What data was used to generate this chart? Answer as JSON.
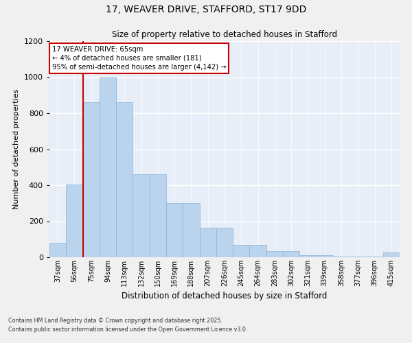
{
  "title": "17, WEAVER DRIVE, STAFFORD, ST17 9DD",
  "subtitle": "Size of property relative to detached houses in Stafford",
  "xlabel": "Distribution of detached houses by size in Stafford",
  "ylabel": "Number of detached properties",
  "categories": [
    "37sqm",
    "56sqm",
    "75sqm",
    "94sqm",
    "113sqm",
    "132sqm",
    "150sqm",
    "169sqm",
    "188sqm",
    "207sqm",
    "226sqm",
    "245sqm",
    "264sqm",
    "283sqm",
    "302sqm",
    "321sqm",
    "339sqm",
    "358sqm",
    "377sqm",
    "396sqm",
    "415sqm"
  ],
  "bar_heights": [
    80,
    405,
    860,
    1000,
    860,
    460,
    460,
    300,
    300,
    165,
    165,
    70,
    70,
    35,
    35,
    13,
    13,
    3,
    3,
    3,
    25
  ],
  "bar_color": "#bad4ee",
  "bar_edge_color": "#8ab4d8",
  "background_color": "#e8eef8",
  "grid_color": "#ffffff",
  "vline_x_index": 1,
  "vline_color": "#cc0000",
  "annotation_text": "17 WEAVER DRIVE: 65sqm\n← 4% of detached houses are smaller (181)\n95% of semi-detached houses are larger (4,142) →",
  "annotation_box_color": "#cc0000",
  "ylim": [
    0,
    1200
  ],
  "yticks": [
    0,
    200,
    400,
    600,
    800,
    1000,
    1200
  ],
  "fig_bg": "#f0f0f0",
  "footnote1": "Contains HM Land Registry data © Crown copyright and database right 2025.",
  "footnote2": "Contains public sector information licensed under the Open Government Licence v3.0."
}
